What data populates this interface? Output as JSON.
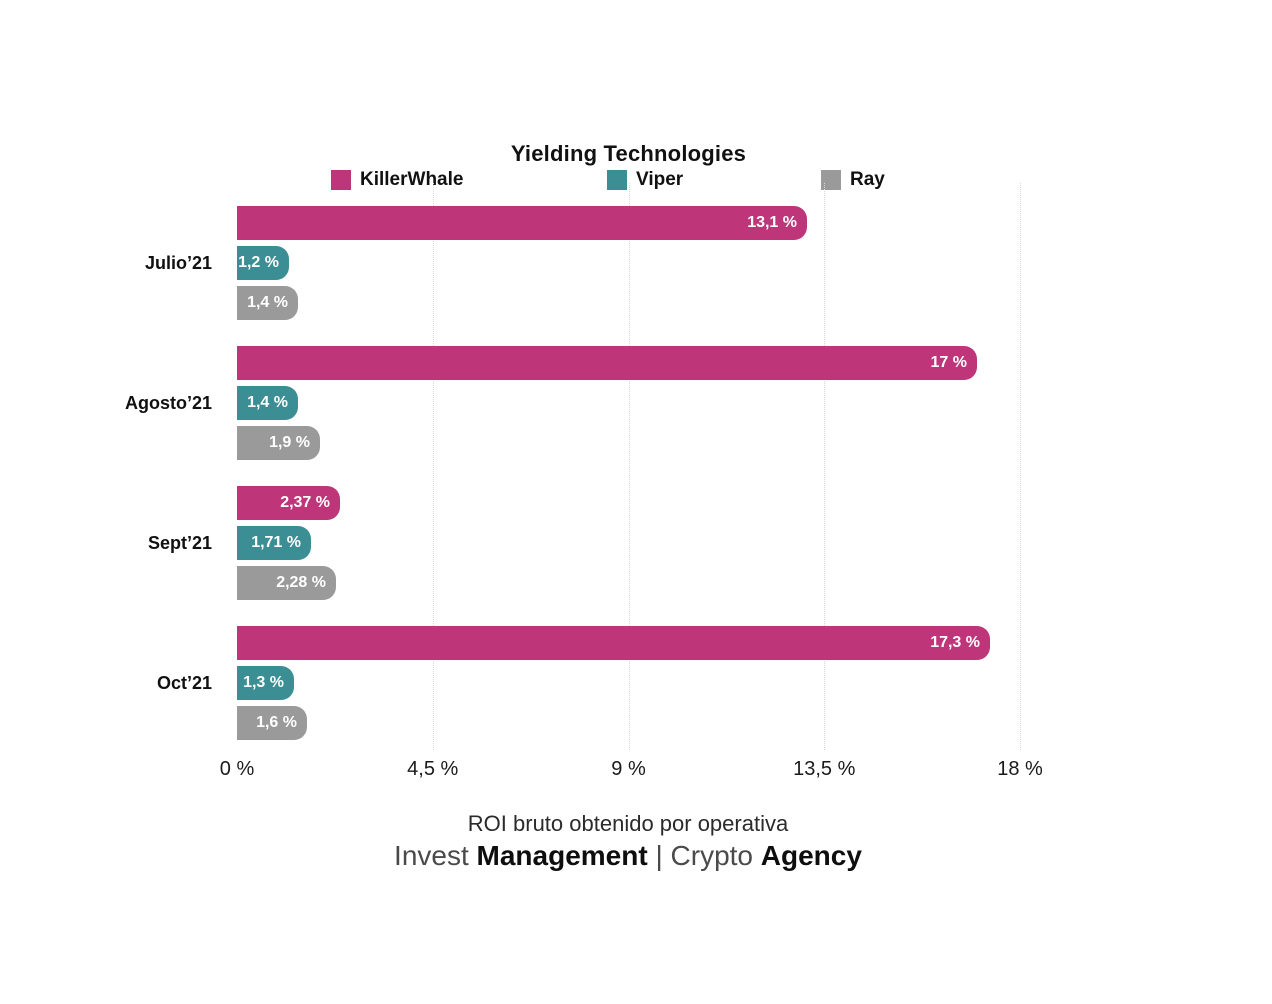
{
  "chart": {
    "title": "Yielding Technologies",
    "footer_caption": "ROI bruto obtenido por operativa",
    "brand": [
      {
        "text": "Invest ",
        "weight": "light"
      },
      {
        "text": "Management",
        "weight": "bold"
      },
      {
        "text": " | ",
        "weight": "light"
      },
      {
        "text": "Crypto ",
        "weight": "light"
      },
      {
        "text": "Agency",
        "weight": "bold"
      }
    ]
  },
  "chart_data": {
    "type": "bar",
    "orientation": "horizontal",
    "title": "Yielding Technologies",
    "categories": [
      "Julio’21",
      "Agosto’21",
      "Sept’21",
      "Oct’21"
    ],
    "series": [
      {
        "name": "KillerWhale",
        "color": "#BE3579",
        "values": [
          13.1,
          17,
          2.37,
          17.3
        ],
        "labels": [
          "13,1 %",
          "17 %",
          "2,37 %",
          "17,3 %"
        ]
      },
      {
        "name": "Viper",
        "color": "#3B8E94",
        "values": [
          1.2,
          1.4,
          1.71,
          1.3
        ],
        "labels": [
          "1,2 %",
          "1,4 %",
          "1,71 %",
          "1,3 %"
        ]
      },
      {
        "name": "Ray",
        "color": "#9A9A9A",
        "values": [
          1.4,
          1.9,
          2.28,
          1.6
        ],
        "labels": [
          "1,4 %",
          "1,9 %",
          "2,28 %",
          "1,6 %"
        ]
      }
    ],
    "x_axis": {
      "max": 18,
      "ticks": [
        0,
        4.5,
        9,
        13.5,
        18
      ],
      "tick_labels": [
        "0 %",
        "4,5 %",
        "9 %",
        "13,5 %",
        "18 %"
      ]
    },
    "xlabel": "ROI bruto obtenido por operativa",
    "grid": "vertical-dotted",
    "legend_position": "top"
  }
}
